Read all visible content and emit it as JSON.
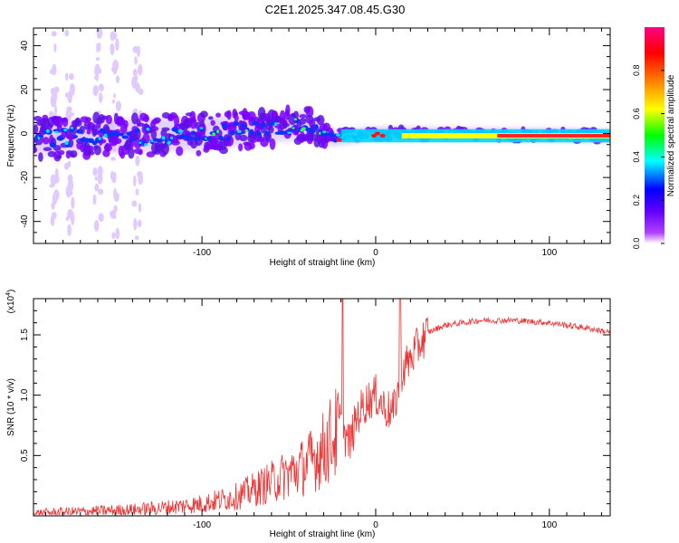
{
  "title": "C2E1.2025.347.08.45.G30",
  "chart_data": [
    {
      "type": "heatmap",
      "xlabel": "Height of straight line (km)",
      "ylabel": "Frequency (Hz)",
      "xlim": [
        -197,
        135
      ],
      "ylim": [
        -50,
        48
      ],
      "x_ticks": [
        -100,
        0,
        100
      ],
      "y_ticks": [
        -40,
        -20,
        0,
        20,
        40
      ],
      "x_tick_labels": [
        "-100",
        "0",
        "100"
      ],
      "y_tick_labels": [
        "-40",
        "-20",
        "0",
        "20",
        "40"
      ],
      "colorbar": {
        "label": "Normalized spectral amplitude",
        "range": [
          0,
          1
        ],
        "ticks": [
          0.0,
          0.2,
          0.4,
          0.6,
          0.8
        ],
        "tick_labels": [
          "0.0",
          "0.2",
          "0.4",
          "0.6",
          "0.8"
        ],
        "colormap": [
          "#ffffff",
          "#a000ff",
          "#0000ff",
          "#00ffff",
          "#00ff00",
          "#ffff00",
          "#ff8000",
          "#ff0000",
          "#ff00a0"
        ]
      },
      "description_ridge": [
        {
          "x": -197,
          "f": -2,
          "spread": 10
        },
        {
          "x": -100,
          "f": 0,
          "spread": 10
        },
        {
          "x": -40,
          "f": 4,
          "spread": 8
        },
        {
          "x": -25,
          "f": -2,
          "spread": 4
        },
        {
          "x": 0,
          "f": 0,
          "spread": 3
        },
        {
          "x": 135,
          "f": -1,
          "spread": 3
        }
      ]
    },
    {
      "type": "line",
      "xlabel": "Height of straight line (km)",
      "ylabel": "SNR (10 * v/v)",
      "y_multiplier_label": "(x10",
      "y_multiplier_exp": "4",
      "y_multiplier_close": ")",
      "xlim": [
        -197,
        135
      ],
      "ylim": [
        0,
        1.8
      ],
      "x_ticks": [
        -100,
        0,
        100
      ],
      "y_ticks": [
        0.5,
        1.0,
        1.5
      ],
      "x_tick_labels": [
        "-100",
        "0",
        "100"
      ],
      "y_tick_labels": [
        "0.5",
        "1.0",
        "1.5"
      ],
      "series": [
        {
          "name": "SNR",
          "color": "#ee3333",
          "x": [
            -197,
            -180,
            -160,
            -140,
            -120,
            -100,
            -80,
            -60,
            -40,
            -30,
            -25,
            -20,
            -15,
            -10,
            -5,
            0,
            5,
            10,
            15,
            20,
            25,
            30,
            40,
            60,
            80,
            100,
            120,
            135
          ],
          "y": [
            0.02,
            0.03,
            0.04,
            0.05,
            0.07,
            0.1,
            0.16,
            0.28,
            0.42,
            0.55,
            0.65,
            0.72,
            0.6,
            0.85,
            0.95,
            1.0,
            0.9,
            0.85,
            1.2,
            1.3,
            1.42,
            1.52,
            1.58,
            1.62,
            1.62,
            1.6,
            1.56,
            1.52
          ]
        }
      ]
    }
  ]
}
